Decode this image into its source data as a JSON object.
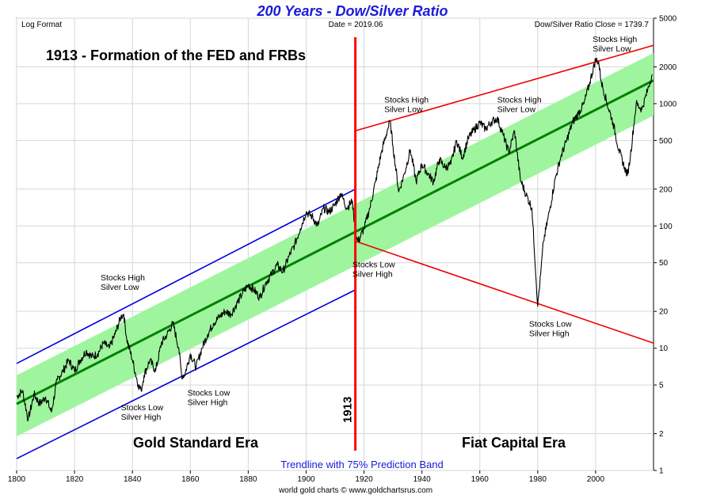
{
  "chart_data": {
    "type": "line",
    "title": "200 Years - Dow/Silver Ratio",
    "scale": "log",
    "header_left": "Log Format",
    "header_center": "Date = 2019.06",
    "header_right": "Dow/Silver Ratio Close = 1739.7",
    "headline": "1913 - Formation of the FED and FRBs",
    "xlim": [
      1800,
      2020
    ],
    "ylim": [
      1,
      5000
    ],
    "x_ticks": [
      "1800",
      "1820",
      "1840",
      "1860",
      "1880",
      "1900",
      "1920",
      "1940",
      "1960",
      "1980",
      "2000"
    ],
    "y_ticks": [
      "1",
      "2",
      "5",
      "10",
      "20",
      "50",
      "100",
      "200",
      "500",
      "1000",
      "2000",
      "5000"
    ],
    "grid": true,
    "series": [
      {
        "name": "Dow/Silver Ratio",
        "color": "#000000",
        "x": [
          1800,
          1802,
          1804,
          1806,
          1808,
          1810,
          1812,
          1814,
          1816,
          1818,
          1820,
          1822,
          1824,
          1826,
          1828,
          1830,
          1832,
          1834,
          1836,
          1837,
          1838,
          1840,
          1842,
          1843,
          1844,
          1846,
          1848,
          1850,
          1852,
          1854,
          1856,
          1857,
          1858,
          1860,
          1862,
          1864,
          1866,
          1868,
          1870,
          1872,
          1874,
          1876,
          1878,
          1880,
          1882,
          1884,
          1886,
          1888,
          1890,
          1892,
          1894,
          1896,
          1898,
          1900,
          1902,
          1904,
          1906,
          1908,
          1910,
          1912,
          1914,
          1916,
          1917,
          1918,
          1920,
          1922,
          1924,
          1926,
          1928,
          1929,
          1930,
          1932,
          1934,
          1936,
          1938,
          1940,
          1942,
          1944,
          1946,
          1948,
          1950,
          1952,
          1954,
          1956,
          1958,
          1960,
          1962,
          1964,
          1966,
          1968,
          1970,
          1972,
          1974,
          1976,
          1978,
          1980,
          1981,
          1982,
          1984,
          1986,
          1988,
          1990,
          1992,
          1994,
          1996,
          1998,
          2000,
          2001,
          2002,
          2004,
          2006,
          2008,
          2010,
          2011,
          2012,
          2014,
          2016,
          2018,
          2019.5
        ],
        "values": [
          4.0,
          4.5,
          2.6,
          4.2,
          3.5,
          4.0,
          3.0,
          5.5,
          6.5,
          8.0,
          6.5,
          8.0,
          9.5,
          8.5,
          9.0,
          11.0,
          10.0,
          13.0,
          18.0,
          19.0,
          12.0,
          8.0,
          5.0,
          4.5,
          6.0,
          8.0,
          6.5,
          11.0,
          13.0,
          16.0,
          10.0,
          6.0,
          6.0,
          9.0,
          7.0,
          10.0,
          13.0,
          16.0,
          18.0,
          20.0,
          19.0,
          23.0,
          28.0,
          33.0,
          30.0,
          26.0,
          34.0,
          40.0,
          48.0,
          42.0,
          56.0,
          70.0,
          95.0,
          130.0,
          120.0,
          100.0,
          140.0,
          130.0,
          150.0,
          185.0,
          140.0,
          160.0,
          85.0,
          75.0,
          95.0,
          140.0,
          230.0,
          400.0,
          600.0,
          720.0,
          450.0,
          190.0,
          270.0,
          420.0,
          230.0,
          320.0,
          270.0,
          230.0,
          350.0,
          300.0,
          320.0,
          500.0,
          360.0,
          520.0,
          610.0,
          700.0,
          620.0,
          710.0,
          760.0,
          560.0,
          400.0,
          600.0,
          240.0,
          180.0,
          140.0,
          22.0,
          40.0,
          75.0,
          130.0,
          240.0,
          370.0,
          500.0,
          700.0,
          830.0,
          1000.0,
          1500.0,
          2300.0,
          2200.0,
          1500.0,
          1000.0,
          700.0,
          420.0,
          300.0,
          260.0,
          370.0,
          1000.0,
          900.0,
          1300.0,
          1739.7
        ]
      }
    ],
    "trendline": {
      "name": "Trendline",
      "color": "#008000",
      "x": [
        1800,
        2020
      ],
      "values": [
        3.5,
        1550
      ]
    },
    "prediction_band": {
      "label": "Trendline with 75% Prediction Band",
      "color": "#9ef59e",
      "lower": [
        1.9,
        800
      ],
      "upper": [
        6.0,
        2600
      ]
    },
    "channel_lines_blue": [
      {
        "x": [
          1800,
          1917
        ],
        "values": [
          7.5,
          200
        ]
      },
      {
        "x": [
          1800,
          1917
        ],
        "values": [
          1.25,
          30
        ]
      }
    ],
    "channel_lines_red": [
      {
        "x": [
          1917,
          2020
        ],
        "values": [
          600,
          3000
        ]
      },
      {
        "x": [
          1917,
          2020
        ],
        "values": [
          75,
          11
        ]
      }
    ],
    "fed_line": {
      "x": 1917,
      "label": "1913",
      "color": "#ff0000"
    },
    "annotations": [
      {
        "id": "gs-high",
        "line1": "Stocks High",
        "line2": "Silver Low",
        "x": 1829,
        "y": 36
      },
      {
        "id": "gs-low-1",
        "line1": "Stocks Low",
        "line2": "Silver High",
        "x": 1836,
        "y": 3.1
      },
      {
        "id": "gs-low-2",
        "line1": "Stocks Low",
        "line2": "Silver High",
        "x": 1859,
        "y": 4.1
      },
      {
        "id": "fed-low",
        "line1": "Stocks Low",
        "line2": "Silver High",
        "x": 1916,
        "y": 46
      },
      {
        "id": "fiat-high-1",
        "line1": "Stocks High",
        "line2": "Silver Low",
        "x": 1927,
        "y": 1020
      },
      {
        "id": "fiat-high-2",
        "line1": "Stocks High",
        "line2": "Silver Low",
        "x": 1966,
        "y": 1020
      },
      {
        "id": "fiat-high-3",
        "line1": "Stocks High",
        "line2": "Silver Low",
        "x": 1999,
        "y": 3200
      },
      {
        "id": "fiat-low",
        "line1": "Stocks Low",
        "line2": "Silver High",
        "x": 1977,
        "y": 15
      }
    ],
    "eras": {
      "left": "Gold Standard Era",
      "right": "Fiat Capital Era"
    },
    "credit": "world gold charts © www.goldchartsrus.com"
  }
}
